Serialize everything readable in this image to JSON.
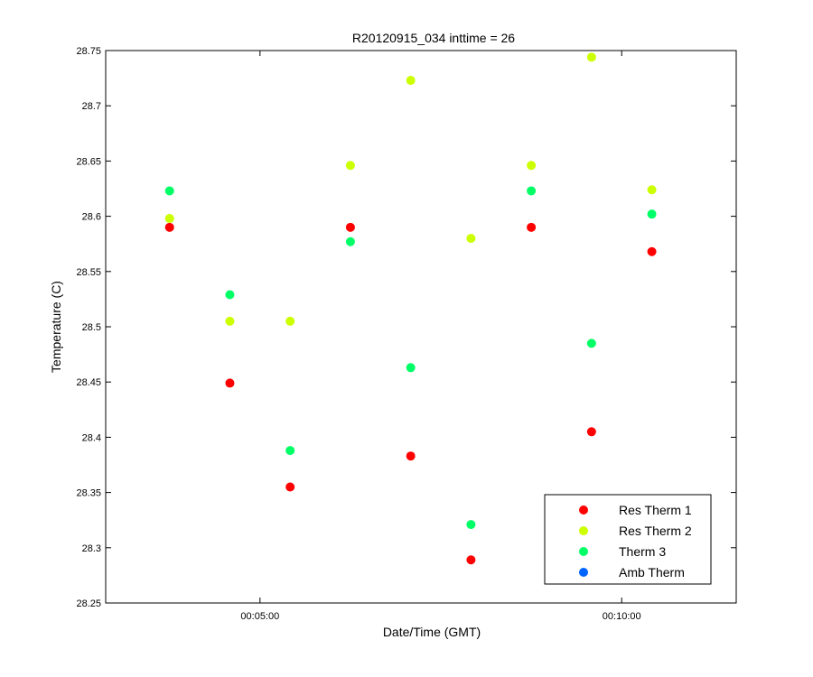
{
  "chart_data": {
    "type": "scatter",
    "title": "R20120915_034 inttime = 26",
    "xlabel": "Date/Time (GMT)",
    "ylabel": "Temperature (C)",
    "x_ticks": [
      "00:05:00",
      "00:10:00"
    ],
    "y_ticks": [
      "28.25",
      "28.3",
      "28.35",
      "28.4",
      "28.45",
      "28.5",
      "28.55",
      "28.6",
      "28.65",
      "28.7",
      "28.75"
    ],
    "ylim": [
      28.25,
      28.75
    ],
    "xlim": [
      "00:02:52",
      "00:11:35"
    ],
    "x": [
      "00:03:45",
      "00:04:35",
      "00:05:25",
      "00:06:15",
      "00:07:05",
      "00:07:55",
      "00:08:45",
      "00:09:35",
      "00:10:25"
    ],
    "series": [
      {
        "name": "Res Therm 1",
        "color": "#ff0000",
        "values": [
          28.59,
          28.449,
          28.355,
          28.59,
          28.383,
          28.289,
          28.59,
          28.405,
          28.568
        ]
      },
      {
        "name": "Res Therm 2",
        "color": "#ccff00",
        "values": [
          28.598,
          28.505,
          28.505,
          28.646,
          28.723,
          28.58,
          28.646,
          28.744,
          28.624
        ]
      },
      {
        "name": "Therm 3",
        "color": "#00ff66",
        "values": [
          28.623,
          28.529,
          28.388,
          28.577,
          28.463,
          28.321,
          28.623,
          28.485,
          28.602
        ]
      },
      {
        "name": "Amb Therm",
        "color": "#0066ff",
        "values": []
      }
    ],
    "grid": false,
    "legend_position": "bottom-right"
  }
}
